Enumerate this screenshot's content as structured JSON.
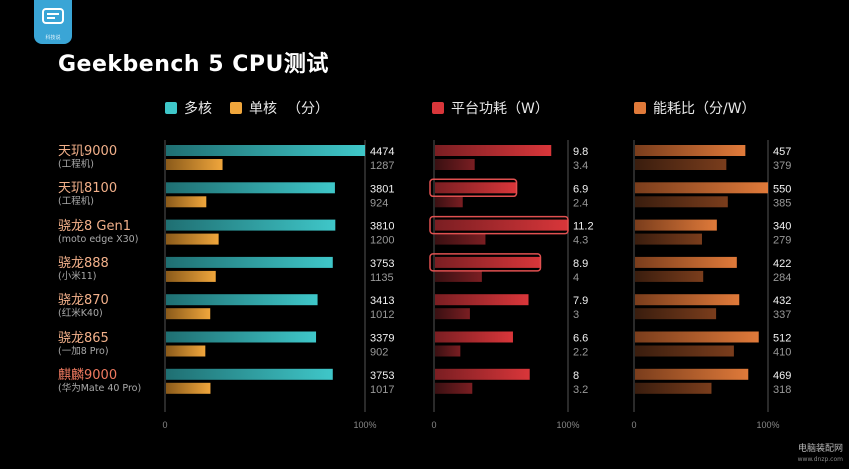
{
  "title": "Geekbench 5 CPU测试",
  "logo": {
    "name": "logo-icon",
    "label": "科技说"
  },
  "watermark": {
    "main": "电脑装配网",
    "sub": "www.dnzp.com"
  },
  "legend": {
    "multi": "多核",
    "single": "单核",
    "unit": "（分）",
    "power": "平台功耗（W）",
    "eff": "能耗比（分/W）"
  },
  "colors": {
    "multi": "#3fc7c9",
    "single": "#f0a63c",
    "power_bright": "#d9363a",
    "power_dim": "#7a1e22",
    "eff_bright": "#e07a3a",
    "eff_dim": "#7a3d1c"
  },
  "chart_data": {
    "type": "bar",
    "categories": [
      "天玑9000",
      "天玑8100",
      "骁龙8 Gen1",
      "骁龙888",
      "骁龙870",
      "骁龙865",
      "麒麟9000"
    ],
    "subtitles": [
      "(工程机)",
      "(工程机)",
      "(moto edge X30)",
      "(小米11)",
      "(红米K40)",
      "(一加8 Pro)",
      "(华为Mate 40 Pro)"
    ],
    "panels": [
      {
        "series": [
          {
            "name": "多核",
            "values": [
              4474,
              3801,
              3810,
              3753,
              3413,
              3379,
              3753
            ]
          },
          {
            "name": "单核",
            "values": [
              1287,
              924,
              1200,
              1135,
              1012,
              902,
              1017
            ]
          }
        ],
        "xlim": [
          0,
          4474
        ],
        "ticks": [
          "0",
          "100%"
        ]
      },
      {
        "series": [
          {
            "name": "平台功耗",
            "values": [
              9.8,
              6.9,
              11.2,
              8.9,
              7.9,
              6.6,
              8.0
            ]
          },
          {
            "values": [
              3.4,
              2.4,
              4.3,
              4.0,
              3.0,
              2.2,
              3.2
            ]
          }
        ],
        "xlim": [
          0,
          11.2
        ],
        "ticks": [
          "0",
          "100%"
        ],
        "highlighted": [
          1,
          2,
          3
        ]
      },
      {
        "series": [
          {
            "name": "能耗比",
            "values": [
              457,
              550,
              340,
              422,
              432,
              512,
              469
            ]
          },
          {
            "values": [
              379,
              385,
              279,
              284,
              337,
              410,
              318
            ]
          }
        ],
        "xlim": [
          0,
          550
        ],
        "ticks": [
          "0",
          "100%"
        ]
      }
    ]
  }
}
